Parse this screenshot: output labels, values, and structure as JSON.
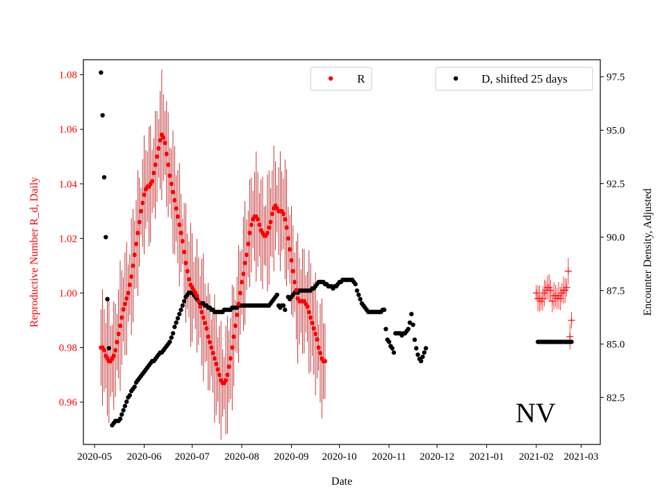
{
  "chart_data": {
    "type": "scatter",
    "xlabel": "Date",
    "ylabel_left": "Reproductive Number R_d, Daily",
    "ylabel_right": "Encounter Density, Adjusted",
    "annotation": "NV",
    "x_range_days": [
      -7,
      316
    ],
    "y_left_range": [
      0.9445,
      1.0855
    ],
    "y_right_range": [
      80.3,
      98.3
    ],
    "x_ticks": [
      {
        "label": "2020-05",
        "day": 0
      },
      {
        "label": "2020-06",
        "day": 31
      },
      {
        "label": "2020-07",
        "day": 61
      },
      {
        "label": "2020-08",
        "day": 92
      },
      {
        "label": "2020-09",
        "day": 123
      },
      {
        "label": "2020-10",
        "day": 153
      },
      {
        "label": "2020-11",
        "day": 184
      },
      {
        "label": "2020-12",
        "day": 214
      },
      {
        "label": "2021-01",
        "day": 245
      },
      {
        "label": "2021-02",
        "day": 276
      },
      {
        "label": "2021-03",
        "day": 304
      }
    ],
    "y_left_ticks": [
      "0.96",
      "0.98",
      "1.00",
      "1.02",
      "1.04",
      "1.06",
      "1.08"
    ],
    "y_right_ticks": [
      "82.5",
      "85.0",
      "87.5",
      "90.0",
      "92.5",
      "95.0",
      "97.5"
    ],
    "legend": {
      "r_label": "R",
      "d_label": "D, shifted 25 days"
    },
    "colors": {
      "r": "#ff0000",
      "r_err": "#b30000",
      "d": "#000000"
    },
    "series_r": {
      "name": "R",
      "axis": "left",
      "start_day": 4,
      "step_days": 1,
      "values": [
        0.98,
        0.98,
        0.979,
        0.977,
        0.976,
        0.975,
        0.975,
        0.976,
        0.977,
        0.979,
        0.982,
        0.985,
        0.988,
        0.991,
        0.994,
        0.996,
        0.998,
        1.0,
        1.003,
        1.006,
        1.01,
        1.014,
        1.018,
        1.022,
        1.026,
        1.03,
        1.033,
        1.036,
        1.038,
        1.039,
        1.039,
        1.04,
        1.041,
        1.044,
        1.047,
        1.05,
        1.053,
        1.056,
        1.058,
        1.057,
        1.055,
        1.051,
        1.047,
        1.043,
        1.04,
        1.037,
        1.034,
        1.031,
        1.028,
        1.025,
        1.022,
        1.019,
        1.015,
        1.011,
        1.008,
        1.005,
        1.003,
        1.002,
        1.001,
        1.0,
        0.999,
        0.997,
        0.995,
        0.993,
        0.991,
        0.989,
        0.987,
        0.984,
        0.982,
        0.98,
        0.978,
        0.976,
        0.974,
        0.972,
        0.97,
        0.968,
        0.967,
        0.967,
        0.968,
        0.97,
        0.973,
        0.976,
        0.98,
        0.984,
        0.988,
        0.992,
        0.996,
        1.0,
        1.004,
        1.007,
        1.011,
        1.014,
        1.018,
        1.022,
        1.025,
        1.027,
        1.028,
        1.028,
        1.027,
        1.025,
        1.023,
        1.022,
        1.021,
        1.021,
        1.022,
        1.024,
        1.026,
        1.029,
        1.031,
        1.032,
        1.031,
        1.03,
        1.03,
        1.03,
        1.029,
        1.027,
        1.024,
        1.02,
        1.016,
        1.012,
        1.008,
        1.004,
        1.001,
        0.998,
        0.997,
        0.997,
        0.997,
        0.997,
        0.996,
        0.995,
        0.993,
        0.991,
        0.989,
        0.987,
        0.985,
        0.983,
        0.98,
        0.978,
        0.976,
        0.975,
        0.975
      ]
    },
    "series_r_forecast": {
      "name": "R",
      "axis": "left",
      "points": [
        [
          276,
          1.0
        ],
        [
          277,
          0.998
        ],
        [
          278,
          0.998
        ],
        [
          279,
          0.997
        ],
        [
          280,
          0.998
        ],
        [
          281,
          1.0
        ],
        [
          282,
          1.001
        ],
        [
          283,
          1.002
        ],
        [
          284,
          1.002
        ],
        [
          285,
          1.001
        ],
        [
          286,
          0.997
        ],
        [
          287,
          0.999
        ],
        [
          288,
          0.999
        ],
        [
          289,
          0.998
        ],
        [
          290,
          0.999
        ],
        [
          291,
          0.998
        ],
        [
          292,
          1.0
        ],
        [
          293,
          1.001
        ],
        [
          294,
          1.001
        ],
        [
          295,
          1.002
        ],
        [
          296,
          1.008
        ],
        [
          297,
          0.984
        ],
        [
          298,
          0.99
        ]
      ]
    },
    "series_d": {
      "name": "D, shifted 25 days",
      "axis": "right",
      "points": [
        [
          4,
          97.7
        ],
        [
          5,
          95.7
        ],
        [
          6,
          92.8
        ],
        [
          7,
          90.0
        ],
        [
          8,
          87.1
        ],
        [
          9,
          84.8
        ],
        [
          11,
          81.2
        ],
        [
          12,
          81.3
        ],
        [
          13,
          81.4
        ],
        [
          14,
          81.4
        ],
        [
          15,
          81.4
        ],
        [
          16,
          81.5
        ],
        [
          17,
          81.7
        ],
        [
          18,
          81.9
        ],
        [
          19,
          82.1
        ],
        [
          20,
          82.3
        ],
        [
          21,
          82.5
        ],
        [
          22,
          82.6
        ],
        [
          23,
          82.8
        ],
        [
          24,
          82.9
        ],
        [
          25,
          83.0
        ],
        [
          26,
          83.2
        ],
        [
          27,
          83.3
        ],
        [
          28,
          83.4
        ],
        [
          29,
          83.5
        ],
        [
          30,
          83.6
        ],
        [
          31,
          83.7
        ],
        [
          32,
          83.8
        ],
        [
          33,
          83.9
        ],
        [
          34,
          84.0
        ],
        [
          35,
          84.1
        ],
        [
          36,
          84.2
        ],
        [
          37,
          84.2
        ],
        [
          38,
          84.3
        ],
        [
          39,
          84.4
        ],
        [
          40,
          84.5
        ],
        [
          41,
          84.6
        ],
        [
          42,
          84.6
        ],
        [
          43,
          84.7
        ],
        [
          44,
          84.8
        ],
        [
          45,
          84.9
        ],
        [
          46,
          85.0
        ],
        [
          47,
          85.1
        ],
        [
          48,
          85.3
        ],
        [
          49,
          85.5
        ],
        [
          50,
          85.8
        ],
        [
          51,
          86.0
        ],
        [
          52,
          86.2
        ],
        [
          53,
          86.4
        ],
        [
          54,
          86.6
        ],
        [
          55,
          86.8
        ],
        [
          56,
          87.0
        ],
        [
          57,
          87.2
        ],
        [
          58,
          87.3
        ],
        [
          59,
          87.4
        ],
        [
          60,
          87.4
        ],
        [
          61,
          87.4
        ],
        [
          62,
          87.3
        ],
        [
          63,
          87.2
        ],
        [
          64,
          87.1
        ],
        [
          65,
          87.0
        ],
        [
          66,
          86.9
        ],
        [
          67,
          86.9
        ],
        [
          68,
          86.9
        ],
        [
          69,
          86.8
        ],
        [
          70,
          86.8
        ],
        [
          71,
          86.7
        ],
        [
          72,
          86.7
        ],
        [
          73,
          86.6
        ],
        [
          74,
          86.6
        ],
        [
          75,
          86.5
        ],
        [
          76,
          86.5
        ],
        [
          77,
          86.5
        ],
        [
          78,
          86.5
        ],
        [
          79,
          86.5
        ],
        [
          80,
          86.5
        ],
        [
          81,
          86.6
        ],
        [
          82,
          86.6
        ],
        [
          83,
          86.6
        ],
        [
          84,
          86.6
        ],
        [
          85,
          86.6
        ],
        [
          86,
          86.7
        ],
        [
          87,
          86.7
        ],
        [
          88,
          86.7
        ],
        [
          89,
          86.7
        ],
        [
          90,
          86.8
        ],
        [
          91,
          86.8
        ],
        [
          92,
          86.8
        ],
        [
          93,
          86.8
        ],
        [
          94,
          86.8
        ],
        [
          95,
          86.8
        ],
        [
          96,
          86.8
        ],
        [
          97,
          86.8
        ],
        [
          98,
          86.8
        ],
        [
          99,
          86.8
        ],
        [
          100,
          86.8
        ],
        [
          101,
          86.8
        ],
        [
          102,
          86.8
        ],
        [
          103,
          86.8
        ],
        [
          104,
          86.8
        ],
        [
          105,
          86.8
        ],
        [
          106,
          86.8
        ],
        [
          107,
          86.8
        ],
        [
          108,
          86.8
        ],
        [
          109,
          86.8
        ],
        [
          110,
          86.9
        ],
        [
          111,
          87.0
        ],
        [
          112,
          87.1
        ],
        [
          113,
          87.2
        ],
        [
          114,
          87.3
        ],
        [
          115,
          86.8
        ],
        [
          116,
          86.7
        ],
        [
          117,
          86.8
        ],
        [
          118,
          86.8
        ],
        [
          119,
          86.6
        ],
        [
          121,
          87.2
        ],
        [
          122,
          87.1
        ],
        [
          123,
          87.2
        ],
        [
          124,
          87.3
        ],
        [
          125,
          87.4
        ],
        [
          126,
          87.5
        ],
        [
          127,
          87.4
        ],
        [
          128,
          87.5
        ],
        [
          129,
          87.5
        ],
        [
          130,
          87.5
        ],
        [
          131,
          87.5
        ],
        [
          132,
          87.5
        ],
        [
          133,
          87.5
        ],
        [
          134,
          87.5
        ],
        [
          135,
          87.5
        ],
        [
          136,
          87.6
        ],
        [
          137,
          87.6
        ],
        [
          138,
          87.7
        ],
        [
          139,
          87.8
        ],
        [
          140,
          87.9
        ],
        [
          141,
          87.9
        ],
        [
          142,
          87.9
        ],
        [
          143,
          87.9
        ],
        [
          144,
          87.8
        ],
        [
          145,
          87.8
        ],
        [
          146,
          87.7
        ],
        [
          147,
          87.7
        ],
        [
          148,
          87.7
        ],
        [
          149,
          87.6
        ],
        [
          150,
          87.7
        ],
        [
          151,
          87.7
        ],
        [
          152,
          87.8
        ],
        [
          153,
          87.9
        ],
        [
          154,
          87.9
        ],
        [
          155,
          88.0
        ],
        [
          156,
          88.0
        ],
        [
          157,
          88.0
        ],
        [
          158,
          88.0
        ],
        [
          159,
          88.0
        ],
        [
          160,
          88.0
        ],
        [
          161,
          88.0
        ],
        [
          162,
          87.9
        ],
        [
          163,
          87.8
        ],
        [
          164,
          87.5
        ],
        [
          165,
          87.3
        ],
        [
          166,
          87.1
        ],
        [
          167,
          86.9
        ],
        [
          168,
          86.8
        ],
        [
          169,
          86.7
        ],
        [
          170,
          86.6
        ],
        [
          171,
          86.5
        ],
        [
          172,
          86.5
        ],
        [
          173,
          86.5
        ],
        [
          174,
          86.5
        ],
        [
          175,
          86.5
        ],
        [
          176,
          86.5
        ],
        [
          177,
          86.5
        ],
        [
          178,
          86.5
        ],
        [
          179,
          86.5
        ],
        [
          180,
          86.6
        ],
        [
          181,
          86.6
        ],
        [
          182,
          85.7
        ],
        [
          183,
          85.2
        ],
        [
          184,
          85.1
        ],
        [
          185,
          84.9
        ],
        [
          186,
          84.8
        ],
        [
          187,
          84.6
        ],
        [
          188,
          85.5
        ],
        [
          189,
          85.5
        ],
        [
          190,
          85.5
        ],
        [
          191,
          85.5
        ],
        [
          192,
          85.4
        ],
        [
          193,
          85.5
        ],
        [
          194,
          85.5
        ],
        [
          195,
          85.6
        ],
        [
          196,
          85.7
        ],
        [
          197,
          86.0
        ],
        [
          198,
          86.4
        ],
        [
          199,
          85.9
        ],
        [
          200,
          85.2
        ],
        [
          201,
          84.8
        ],
        [
          202,
          84.5
        ],
        [
          203,
          84.3
        ],
        [
          204,
          84.2
        ],
        [
          205,
          84.4
        ],
        [
          206,
          84.6
        ],
        [
          207,
          84.8
        ],
        [
          277,
          85.1
        ],
        [
          278,
          85.1
        ],
        [
          279,
          85.1
        ],
        [
          280,
          85.1
        ],
        [
          281,
          85.1
        ],
        [
          282,
          85.1
        ],
        [
          283,
          85.1
        ],
        [
          284,
          85.1
        ],
        [
          285,
          85.1
        ],
        [
          286,
          85.1
        ],
        [
          287,
          85.1
        ],
        [
          288,
          85.1
        ],
        [
          289,
          85.1
        ],
        [
          290,
          85.1
        ],
        [
          291,
          85.1
        ],
        [
          292,
          85.1
        ],
        [
          293,
          85.1
        ],
        [
          294,
          85.1
        ],
        [
          295,
          85.1
        ],
        [
          296,
          85.1
        ],
        [
          297,
          85.1
        ],
        [
          298,
          85.1
        ]
      ]
    }
  }
}
